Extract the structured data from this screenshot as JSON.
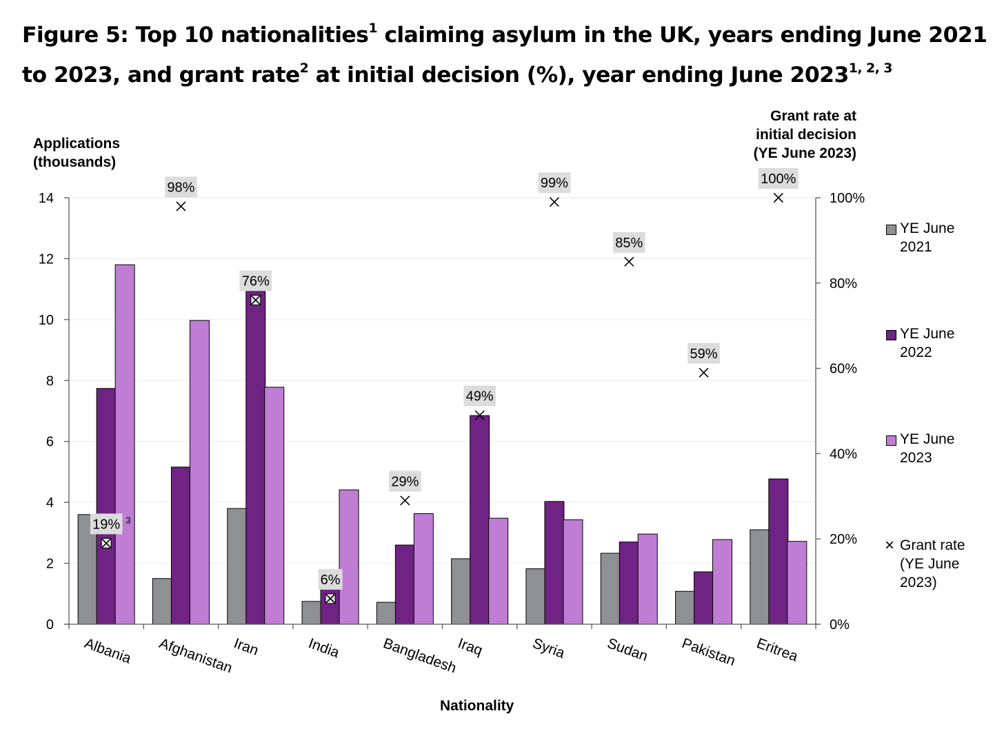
{
  "title": {
    "part1": "Figure 5: Top 10 nationalities",
    "sup1": "1",
    "part2": " claiming asylum in the UK, years ending June 2021 to 2023, and grant rate",
    "sup2": "2",
    "part3": " at initial decision (%), year ending June 2023",
    "sup3": "1, 2, 3"
  },
  "axes": {
    "y_left_line1": "Applications",
    "y_left_line2": "(thousands)",
    "y_right_line1": "Grant rate at",
    "y_right_line2": "initial decision",
    "y_right_line3": "(YE June 2023)",
    "x_label": "Nationality"
  },
  "legend": {
    "s2021_line1": "YE June",
    "s2021_line2": "2021",
    "s2022_line1": "YE June",
    "s2022_line2": "2022",
    "s2023_line1": "YE June",
    "s2023_line2": "2023",
    "grant_marker": "×",
    "grant_line1": "Grant rate",
    "grant_line2": "(YE June",
    "grant_line3": "2023)"
  },
  "chart_data": {
    "type": "bar",
    "categories": [
      "Albania",
      "Afghanistan",
      "Iran",
      "India",
      "Bangladesh",
      "Iraq",
      "Syria",
      "Sudan",
      "Pakistan",
      "Eritrea"
    ],
    "series": [
      {
        "name": "YE June 2021",
        "color": "#8e9094",
        "values": [
          3.6,
          1.5,
          3.8,
          0.75,
          0.72,
          2.15,
          1.82,
          2.33,
          1.08,
          3.1
        ]
      },
      {
        "name": "YE June 2022",
        "color": "#6f2383",
        "values": [
          7.74,
          5.16,
          10.93,
          1.3,
          2.6,
          6.85,
          4.03,
          2.7,
          1.72,
          4.77
        ]
      },
      {
        "name": "YE June 2023",
        "color": "#c07dd4",
        "values": [
          11.8,
          9.97,
          7.78,
          4.41,
          3.63,
          3.48,
          3.43,
          2.96,
          2.78,
          2.72
        ]
      }
    ],
    "line_series": {
      "name": "Grant rate (YE June 2023)",
      "axis": "right",
      "values": [
        19,
        98,
        76,
        6,
        29,
        49,
        99,
        85,
        59,
        100
      ],
      "labels": [
        "19%",
        "98%",
        "76%",
        "6%",
        "29%",
        "49%",
        "99%",
        "85%",
        "59%",
        "100%"
      ],
      "label_note": [
        "3",
        "",
        "",
        "",
        "",
        "",
        "",
        "",
        "",
        ""
      ]
    },
    "y_left": {
      "ylim": [
        0,
        14
      ],
      "ticks": [
        "0",
        "2",
        "4",
        "6",
        "8",
        "10",
        "12",
        "14"
      ]
    },
    "y_right": {
      "ylim": [
        0,
        100
      ],
      "ticks": [
        "0%",
        "20%",
        "40%",
        "60%",
        "80%",
        "100%"
      ]
    },
    "grid": true,
    "legend_position": "right"
  }
}
